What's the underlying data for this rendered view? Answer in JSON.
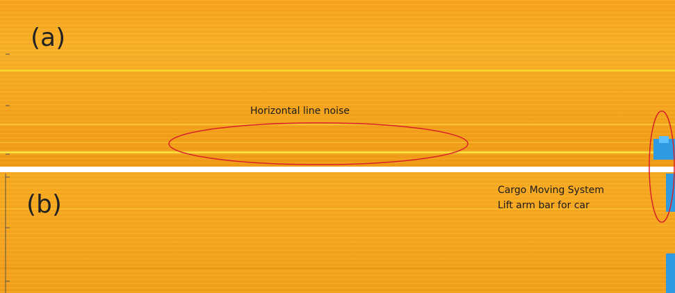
{
  "panels": [
    {
      "label": "(a)",
      "annotation": "Horizontal line noise"
    },
    {
      "label": "(b)",
      "annotation_lines": [
        "Cargo Moving System",
        "Lift arm bar for car"
      ]
    }
  ]
}
